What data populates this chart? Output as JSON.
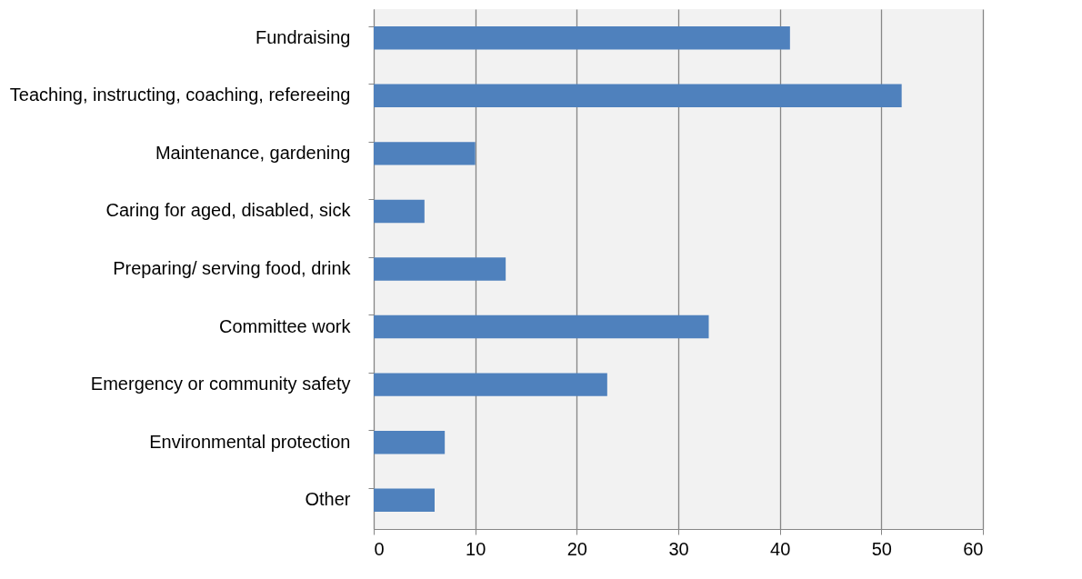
{
  "chart_data": {
    "type": "bar",
    "orientation": "horizontal",
    "categories": [
      "Fundraising",
      "Teaching, instructing, coaching, refereeing",
      "Maintenance, gardening",
      "Caring for aged, disabled, sick",
      "Preparing/ serving food, drink",
      "Committee work",
      "Emergency or community safety",
      "Environmental protection",
      "Other"
    ],
    "values": [
      41,
      52,
      10,
      5,
      13,
      33,
      23,
      7,
      6
    ],
    "color": "#4f81bd",
    "xlim": [
      0,
      60
    ],
    "xticks": [
      0,
      10,
      20,
      30,
      40,
      50,
      60
    ],
    "grid": "x"
  }
}
